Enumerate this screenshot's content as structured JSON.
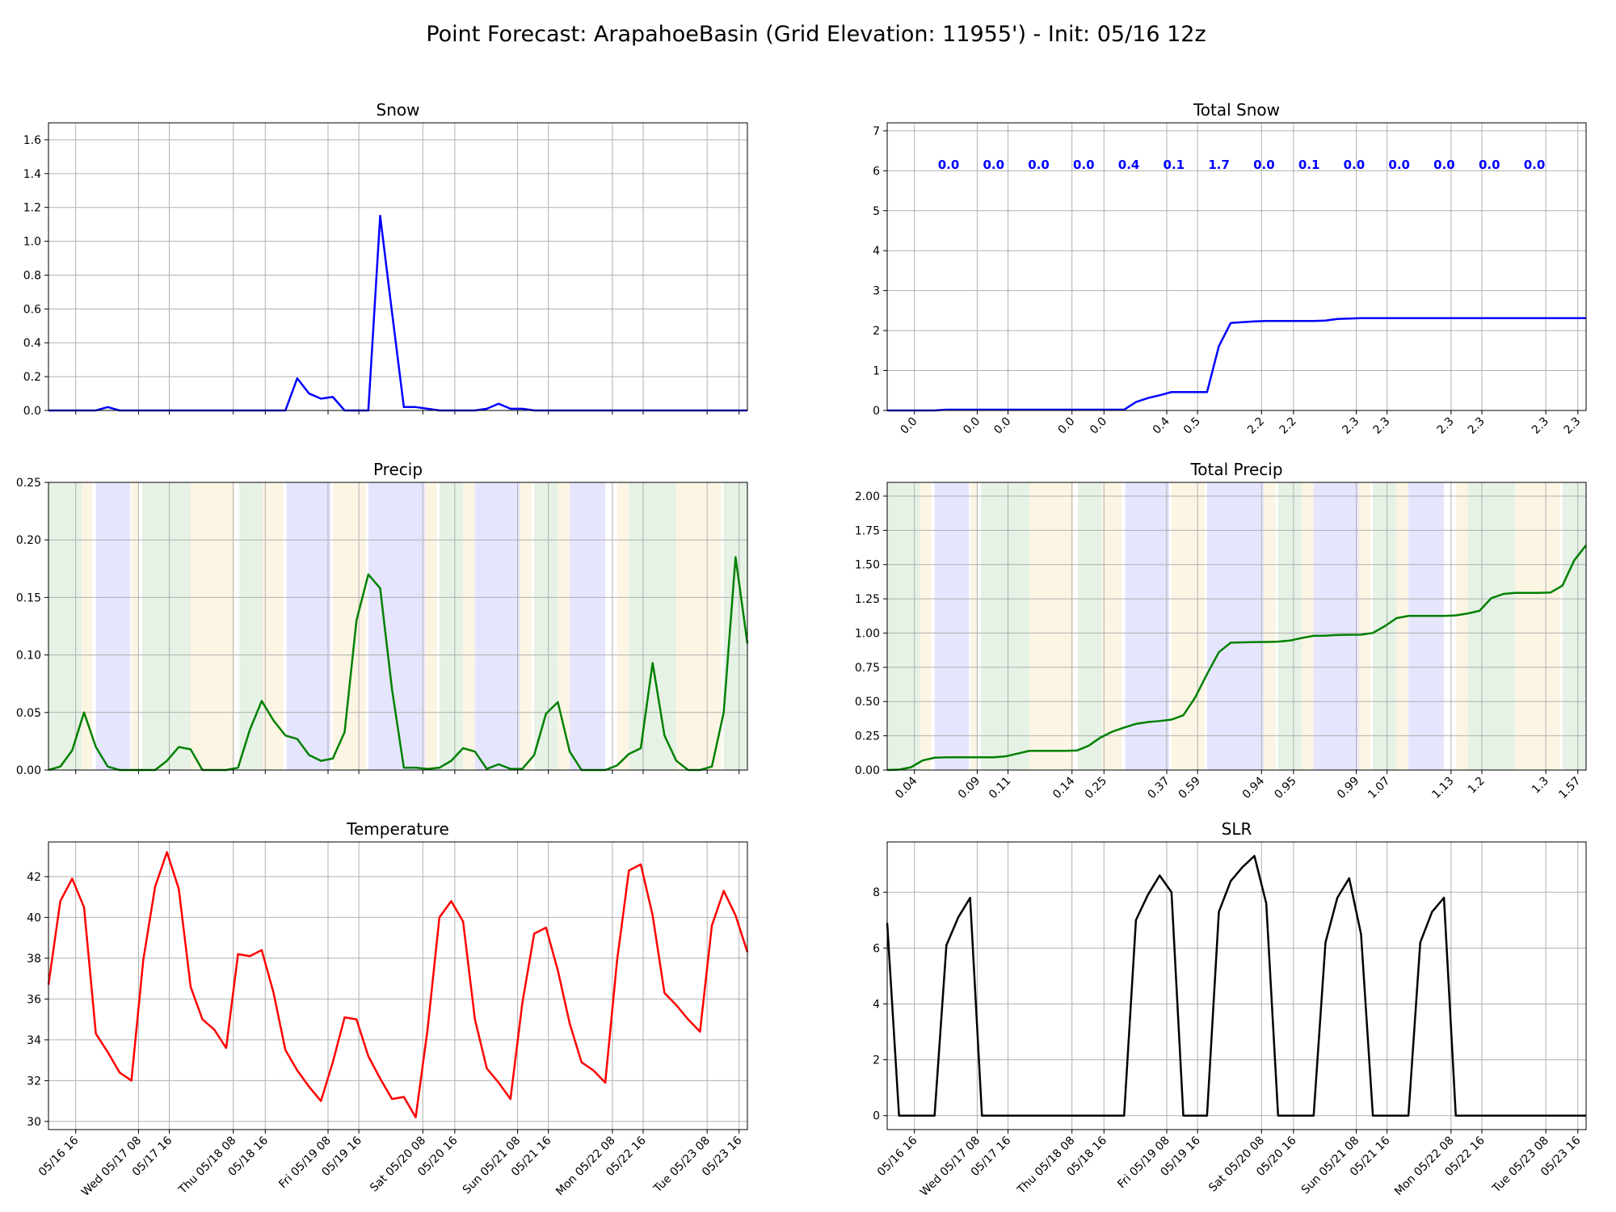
{
  "suptitle": "Point Forecast: ArapahoeBasin (Grid Elevation: 11955') - Init: 05/16 12z",
  "time_ticks": [
    "05/16 16",
    "Wed 05/17 08",
    "05/17 16",
    "Thu 05/18 08",
    "05/18 16",
    "Fri 05/19 08",
    "05/19 16",
    "Sat 05/20 08",
    "05/20 16",
    "Sun 05/21 08",
    "05/21 16",
    "Mon 05/22 08",
    "05/22 16",
    "Tue 05/23 08",
    "05/23 16"
  ],
  "chart_data": [
    {
      "id": "snow",
      "type": "line",
      "title": "Snow",
      "color": "#0000ff",
      "x_range": [
        0,
        59
      ],
      "ylim": [
        0,
        1.7
      ],
      "y_ticks": [
        0.0,
        0.2,
        0.4,
        0.6,
        0.8,
        1.0,
        1.2,
        1.4,
        1.6
      ],
      "tick_labels_visible": false,
      "values": [
        0,
        0,
        0,
        0,
        0,
        0.02,
        0,
        0,
        0,
        0,
        0,
        0,
        0,
        0,
        0,
        0,
        0,
        0,
        0,
        0,
        0,
        0.19,
        0.1,
        0.07,
        0.08,
        0,
        0,
        0,
        1.15,
        0.58,
        0.02,
        0.02,
        0.01,
        0,
        0,
        0,
        0,
        0.01,
        0.04,
        0.01,
        0.01,
        0,
        0,
        0,
        0,
        0,
        0,
        0,
        0,
        0,
        0,
        0,
        0,
        0,
        0,
        0,
        0,
        0,
        0,
        0
      ]
    },
    {
      "id": "total-snow",
      "type": "line",
      "title": "Total Snow",
      "color": "#0000ff",
      "x_range": [
        0,
        59
      ],
      "ylim": [
        0,
        7.2
      ],
      "y_ticks": [
        0,
        1,
        2,
        3,
        4,
        5,
        6,
        7
      ],
      "values": [
        0,
        0,
        0,
        0,
        0,
        0.02,
        0.02,
        0.02,
        0.02,
        0.02,
        0.02,
        0.02,
        0.02,
        0.02,
        0.02,
        0.02,
        0.02,
        0.02,
        0.02,
        0.02,
        0.02,
        0.21,
        0.31,
        0.38,
        0.46,
        0.46,
        0.46,
        0.46,
        1.61,
        2.19,
        2.21,
        2.23,
        2.24,
        2.24,
        2.24,
        2.24,
        2.24,
        2.25,
        2.29,
        2.3,
        2.31,
        2.31,
        2.31,
        2.31,
        2.31,
        2.31,
        2.31,
        2.31,
        2.31,
        2.31,
        2.31,
        2.31,
        2.31,
        2.31,
        2.31,
        2.31,
        2.31,
        2.31,
        2.31,
        2.31
      ],
      "tick_labels": [
        "0.0",
        "0.0",
        "0.0",
        "0.0",
        "0.0",
        "0.4",
        "0.5",
        "2.2",
        "2.2",
        "2.3",
        "2.3",
        "2.3",
        "2.3",
        "2.3",
        "2.3"
      ],
      "period_labels": [
        "0.0",
        "0.0",
        "0.0",
        "0.0",
        "0.4",
        "0.1",
        "1.7",
        "0.0",
        "0.1",
        "0.0",
        "0.0",
        "0.0",
        "0.0",
        "0.0"
      ],
      "period_label_y": 6.15
    },
    {
      "id": "precip",
      "type": "line",
      "title": "Precip",
      "color": "#008000",
      "x_range": [
        0,
        59
      ],
      "ylim": [
        0,
        0.25
      ],
      "y_ticks": [
        0.0,
        0.05,
        0.1,
        0.15,
        0.2,
        0.25
      ],
      "tick_labels_visible": false,
      "values": [
        0,
        0.003,
        0.017,
        0.05,
        0.02,
        0.003,
        0,
        0,
        0,
        0,
        0.008,
        0.02,
        0.018,
        0,
        0,
        0,
        0.002,
        0.035,
        0.06,
        0.043,
        0.03,
        0.027,
        0.013,
        0.008,
        0.01,
        0.033,
        0.13,
        0.17,
        0.158,
        0.07,
        0.002,
        0.002,
        0.001,
        0.002,
        0.008,
        0.019,
        0.016,
        0.001,
        0.005,
        0.001,
        0.001,
        0.013,
        0.049,
        0.059,
        0.016,
        0,
        0,
        0,
        0.004,
        0.014,
        0.019,
        0.093,
        0.03,
        0.008,
        0,
        0,
        0.003,
        0.05,
        0.185,
        0.11
      ]
    },
    {
      "id": "total-precip",
      "type": "line",
      "title": "Total Precip",
      "color": "#008000",
      "x_range": [
        0,
        59
      ],
      "ylim": [
        0,
        2.1
      ],
      "y_ticks": [
        0.0,
        0.25,
        0.5,
        0.75,
        1.0,
        1.25,
        1.5,
        1.75,
        2.0
      ],
      "values": [
        0,
        0.003,
        0.02,
        0.07,
        0.09,
        0.093,
        0.093,
        0.093,
        0.093,
        0.093,
        0.1,
        0.12,
        0.14,
        0.14,
        0.14,
        0.14,
        0.142,
        0.177,
        0.237,
        0.28,
        0.31,
        0.337,
        0.35,
        0.358,
        0.368,
        0.4,
        0.53,
        0.7,
        0.86,
        0.93,
        0.932,
        0.934,
        0.935,
        0.937,
        0.945,
        0.964,
        0.98,
        0.981,
        0.986,
        0.987,
        0.988,
        1.001,
        1.05,
        1.109,
        1.125,
        1.125,
        1.125,
        1.125,
        1.129,
        1.143,
        1.162,
        1.255,
        1.285,
        1.293,
        1.293,
        1.293,
        1.296,
        1.346,
        1.531,
        1.641
      ],
      "tick_labels": [
        "0.04",
        "0.09",
        "0.11",
        "0.14",
        "0.25",
        "0.37",
        "0.59",
        "0.94",
        "0.95",
        "0.99",
        "1.07",
        "1.13",
        "1.2",
        "1.3",
        "1.57"
      ]
    },
    {
      "id": "temperature",
      "type": "line",
      "title": "Temperature",
      "color": "#ff0000",
      "x_range": [
        0,
        59
      ],
      "ylim": [
        29.6,
        43.7
      ],
      "y_ticks": [
        30,
        32,
        34,
        36,
        38,
        40,
        42
      ],
      "values": [
        36.7,
        40.8,
        41.9,
        40.5,
        34.3,
        33.4,
        32.4,
        32.0,
        37.9,
        41.5,
        43.2,
        41.4,
        36.6,
        35.0,
        34.5,
        33.6,
        38.2,
        38.1,
        38.4,
        36.3,
        33.5,
        32.5,
        31.7,
        31.0,
        32.9,
        35.1,
        35.0,
        33.2,
        32.1,
        31.1,
        31.2,
        30.2,
        34.5,
        40.0,
        40.8,
        39.8,
        35.0,
        32.6,
        31.9,
        31.1,
        35.8,
        39.2,
        39.5,
        37.4,
        34.8,
        32.9,
        32.5,
        31.9,
        37.9,
        42.3,
        42.6,
        40.1,
        36.3,
        35.7,
        35.0,
        34.4,
        39.6,
        41.3,
        40.1,
        38.3
      ]
    },
    {
      "id": "slr",
      "type": "line",
      "title": "SLR",
      "color": "#000000",
      "x_range": [
        0,
        59
      ],
      "ylim": [
        -0.5,
        9.8
      ],
      "y_ticks": [
        0,
        2,
        4,
        6,
        8
      ],
      "values": [
        6.9,
        0,
        0,
        0,
        0,
        6.1,
        7.1,
        7.8,
        0,
        0,
        0,
        0,
        0,
        0,
        0,
        0,
        0,
        0,
        0,
        0,
        0,
        7.0,
        7.9,
        8.6,
        8.0,
        0,
        0,
        0,
        7.3,
        8.4,
        8.9,
        9.3,
        7.6,
        0,
        0,
        0,
        0,
        6.2,
        7.8,
        8.5,
        6.5,
        0,
        0,
        0,
        0,
        6.2,
        7.3,
        7.8,
        0,
        0,
        0,
        0,
        0,
        0,
        0,
        0,
        0,
        0,
        0,
        0
      ]
    }
  ],
  "precip_bands": [
    {
      "x0": 0,
      "x1": 2.8,
      "color": "#e5f2e5"
    },
    {
      "x0": 2.8,
      "x1": 3.7,
      "color": "#fdf5e4"
    },
    {
      "x0": 4.0,
      "x1": 6.9,
      "color": "#e5e5fe"
    },
    {
      "x0": 7.0,
      "x1": 7.6,
      "color": "#fdf5e4"
    },
    {
      "x0": 7.9,
      "x1": 12.0,
      "color": "#e5f2e5"
    },
    {
      "x0": 12.0,
      "x1": 15.7,
      "color": "#fdf5e4"
    },
    {
      "x0": 16.1,
      "x1": 18.1,
      "color": "#e5f2e5"
    },
    {
      "x0": 18.1,
      "x1": 19.8,
      "color": "#fdf5e4"
    },
    {
      "x0": 20.1,
      "x1": 23.8,
      "color": "#e5e5fe"
    },
    {
      "x0": 24.0,
      "x1": 26.8,
      "color": "#fdf5e4"
    },
    {
      "x0": 27.0,
      "x1": 31.8,
      "color": "#e5e5fe"
    },
    {
      "x0": 31.8,
      "x1": 32.8,
      "color": "#fdf5e4"
    },
    {
      "x0": 33.0,
      "x1": 35.0,
      "color": "#e5f2e5"
    },
    {
      "x0": 35.0,
      "x1": 36.0,
      "color": "#fdf5e4"
    },
    {
      "x0": 36.0,
      "x1": 39.8,
      "color": "#e5e5fe"
    },
    {
      "x0": 39.8,
      "x1": 40.8,
      "color": "#fdf5e4"
    },
    {
      "x0": 41.0,
      "x1": 43.0,
      "color": "#e5f2e5"
    },
    {
      "x0": 43.0,
      "x1": 44.0,
      "color": "#fdf5e4"
    },
    {
      "x0": 44.0,
      "x1": 47.0,
      "color": "#e5e5fe"
    },
    {
      "x0": 48.0,
      "x1": 49.0,
      "color": "#fdf5e4"
    },
    {
      "x0": 49.0,
      "x1": 53.0,
      "color": "#e5f2e5"
    },
    {
      "x0": 53.0,
      "x1": 56.8,
      "color": "#fdf5e4"
    },
    {
      "x0": 57.0,
      "x1": 59.0,
      "color": "#e5f2e5"
    }
  ]
}
